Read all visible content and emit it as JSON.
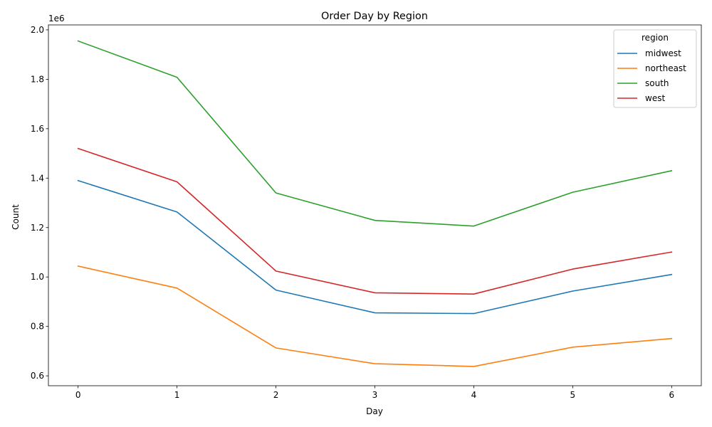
{
  "chart_data": {
    "type": "line",
    "title": "Order Day by Region",
    "xlabel": "Day",
    "ylabel": "Count",
    "y_offset_label": "1e6",
    "y_scale_multiplier": 1000000,
    "x": [
      0,
      1,
      2,
      3,
      4,
      5,
      6
    ],
    "xlim": [
      -0.3,
      6.3
    ],
    "ylim": [
      0.56,
      2.02
    ],
    "x_ticks": [
      0,
      1,
      2,
      3,
      4,
      5,
      6
    ],
    "y_ticks": [
      0.6,
      0.8,
      1.0,
      1.2,
      1.4,
      1.6,
      1.8,
      2.0
    ],
    "y_tick_labels": [
      "0.6",
      "0.8",
      "1.0",
      "1.2",
      "1.4",
      "1.6",
      "1.8",
      "2.0"
    ],
    "grid": false,
    "legend": {
      "title": "region",
      "placement": "top-right"
    },
    "series": [
      {
        "name": "midwest",
        "color": "#1f77b4",
        "values": [
          1.39,
          1.263,
          0.947,
          0.855,
          0.852,
          0.943,
          1.01
        ]
      },
      {
        "name": "northeast",
        "color": "#ff7f0e",
        "values": [
          1.044,
          0.955,
          0.713,
          0.649,
          0.638,
          0.716,
          0.751
        ]
      },
      {
        "name": "south",
        "color": "#2ca02c",
        "values": [
          1.955,
          1.808,
          1.34,
          1.229,
          1.206,
          1.343,
          1.43
        ]
      },
      {
        "name": "west",
        "color": "#d62728",
        "values": [
          1.52,
          1.385,
          1.024,
          0.936,
          0.931,
          1.032,
          1.101
        ]
      }
    ]
  }
}
